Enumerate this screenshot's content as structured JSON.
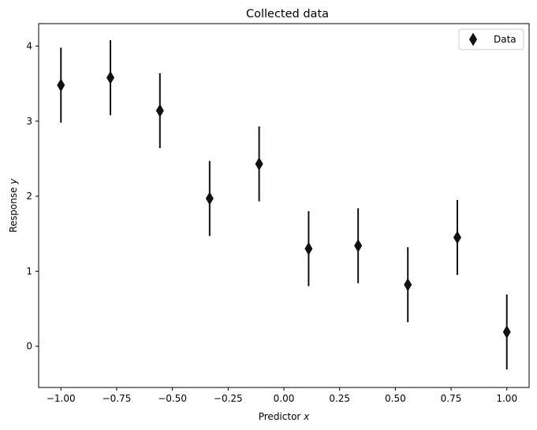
{
  "chart_data": {
    "type": "scatter",
    "title": "Collected data",
    "xlabel_main": "Predictor ",
    "xlabel_var": "x",
    "ylabel_main": "Response ",
    "ylabel_var": "y",
    "xlim": [
      -1.1,
      1.1
    ],
    "ylim": [
      -0.55,
      4.3
    ],
    "xticks": [
      -1.0,
      -0.75,
      -0.5,
      -0.25,
      0.0,
      0.25,
      0.5,
      0.75,
      1.0
    ],
    "xtick_labels": [
      "−1.00",
      "−0.75",
      "−0.50",
      "−0.25",
      "0.00",
      "0.25",
      "0.50",
      "0.75",
      "1.00"
    ],
    "yticks": [
      0,
      1,
      2,
      3,
      4
    ],
    "ytick_labels": [
      "0",
      "1",
      "2",
      "3",
      "4"
    ],
    "grid": false,
    "legend_position": "top-right",
    "marker": "diamond",
    "color": "#111111",
    "series": [
      {
        "name": "Data",
        "x": [
          -1.0,
          -0.778,
          -0.556,
          -0.333,
          -0.111,
          0.111,
          0.333,
          0.556,
          0.778,
          1.0
        ],
        "y": [
          3.48,
          3.58,
          3.14,
          1.97,
          2.43,
          1.3,
          1.34,
          0.82,
          1.45,
          0.19
        ],
        "yerr": [
          0.5,
          0.5,
          0.5,
          0.5,
          0.5,
          0.5,
          0.5,
          0.5,
          0.5,
          0.5
        ]
      }
    ]
  }
}
